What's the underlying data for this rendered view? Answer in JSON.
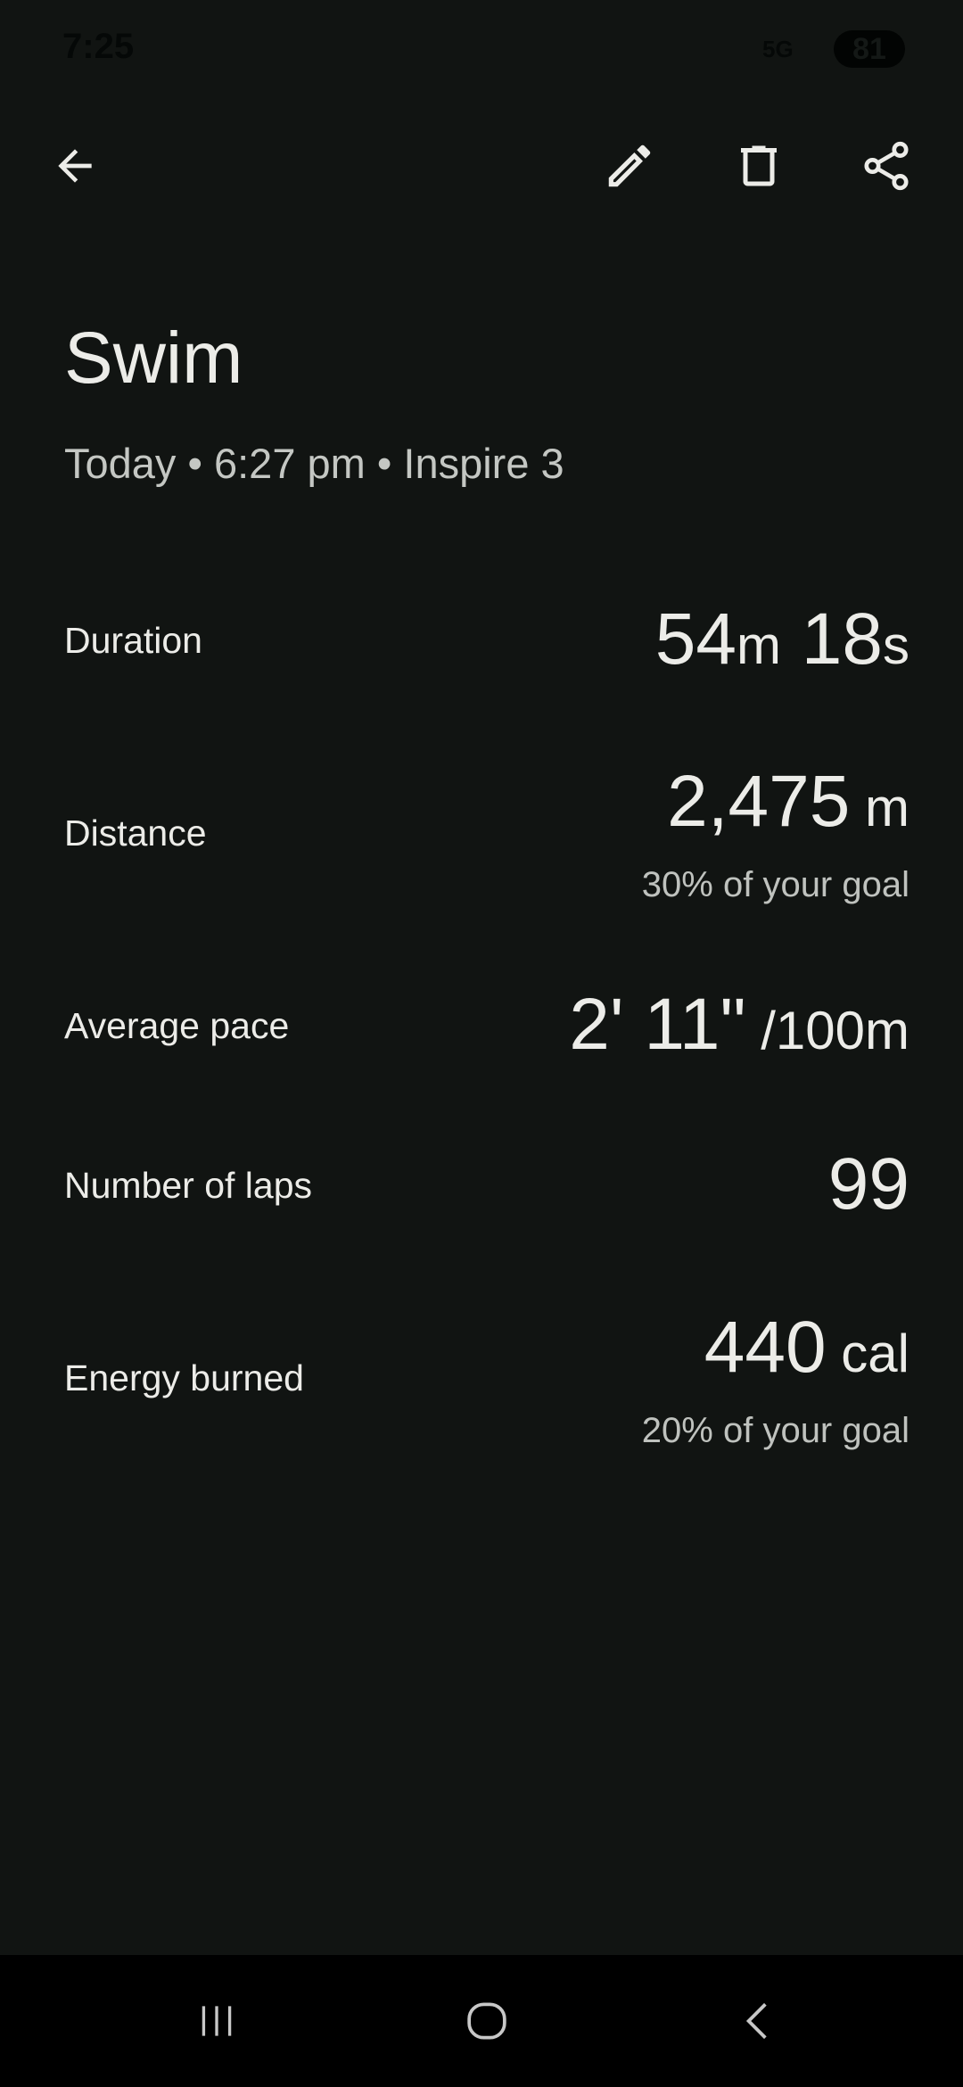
{
  "status_bar": {
    "time": "7:25",
    "network": "5G",
    "battery": "81"
  },
  "toolbar": {
    "back_icon": "arrow-left-icon",
    "edit_icon": "pencil-icon",
    "delete_icon": "trash-icon",
    "share_icon": "share-icon"
  },
  "header": {
    "title": "Swim",
    "subtitle": "Today • 6:27 pm • Inspire 3"
  },
  "stats": [
    {
      "label": "Duration",
      "value": "54",
      "unit": "m",
      "value2": " 18",
      "unit2": "s"
    },
    {
      "label": "Distance",
      "value": "2,475",
      "unit": " m",
      "goal": "30% of your goal"
    },
    {
      "label": "Average pace",
      "value": "2' 11\"",
      "unit": " /100m"
    },
    {
      "label": "Number of laps",
      "value": "99"
    },
    {
      "label": "Energy burned",
      "value": "440",
      "unit": " cal",
      "goal": "20% of your goal"
    }
  ]
}
